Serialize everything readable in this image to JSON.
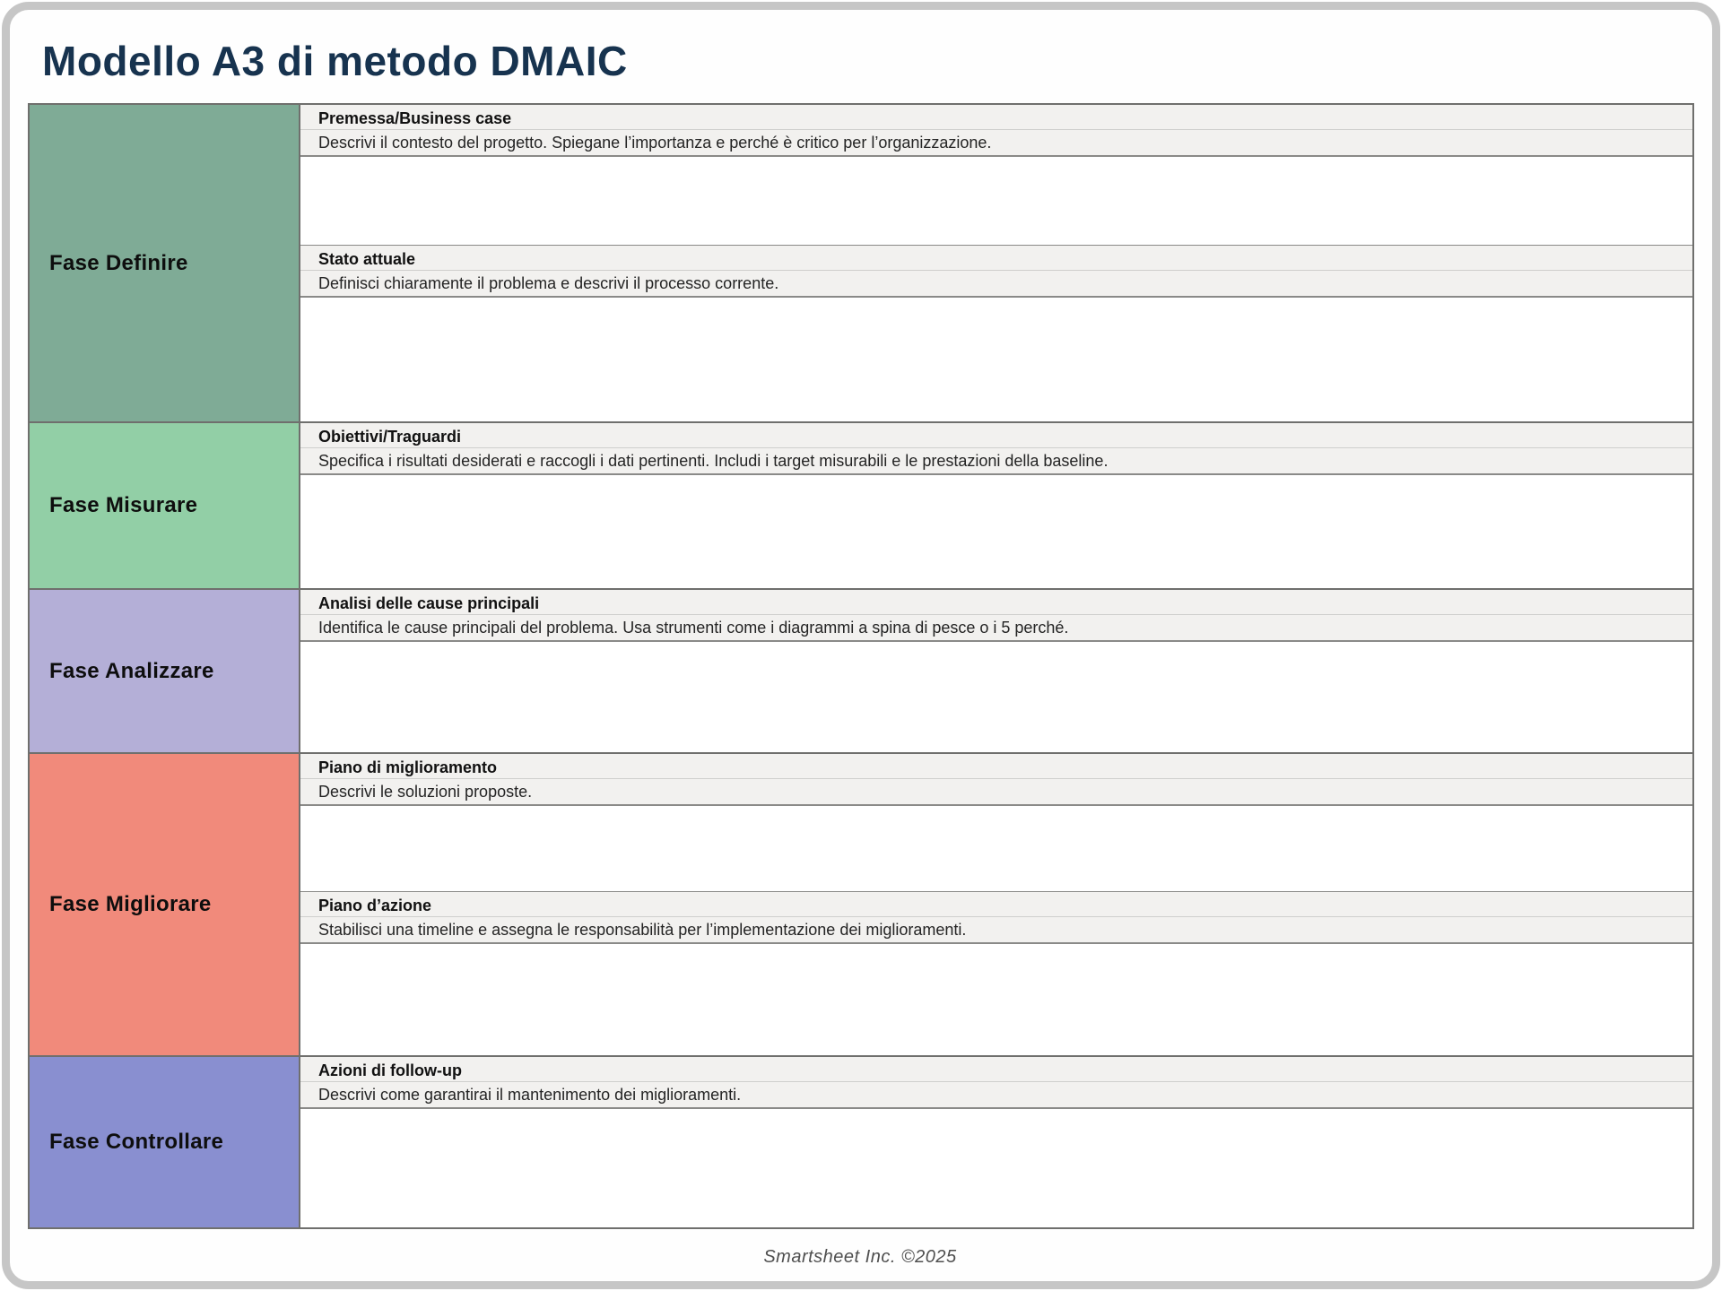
{
  "page": {
    "title": "Modello A3 di metodo DMAIC",
    "footer": "Smartsheet Inc. ©2025"
  },
  "colors": {
    "title_navy": "#17334f",
    "band_bg": "#f2f1ef",
    "frame_gray": "#c6c6c6",
    "border_gray": "#6f6f6d"
  },
  "phases": [
    {
      "label": "Fase Definire",
      "color": "#7fab96",
      "sections": [
        {
          "heading": "Premessa/Business case",
          "description": "Descrivi il contesto del progetto. Spiegane l’importanza e perché è critico per l’organizzazione."
        },
        {
          "heading": "Stato attuale",
          "description": "Definisci chiaramente il problema e descrivi il processo corrente."
        }
      ]
    },
    {
      "label": "Fase Misurare",
      "color": "#92cfa6",
      "sections": [
        {
          "heading": "Obiettivi/Traguardi",
          "description": "Specifica i risultati desiderati e raccogli i dati pertinenti. Includi i target misurabili e le prestazioni della baseline."
        }
      ]
    },
    {
      "label": "Fase Analizzare",
      "color": "#b4afd7",
      "sections": [
        {
          "heading": "Analisi delle cause principali",
          "description": "Identifica le cause principali del problema. Usa strumenti come i diagrammi a spina di pesce o i 5 perché."
        }
      ]
    },
    {
      "label": "Fase Migliorare",
      "color": "#f18a7b",
      "sections": [
        {
          "heading": "Piano di miglioramento",
          "description": "Descrivi le soluzioni proposte."
        },
        {
          "heading": "Piano d’azione",
          "description": "Stabilisci una timeline e assegna le responsabilità per l’implementazione dei miglioramenti."
        }
      ]
    },
    {
      "label": "Fase Controllare",
      "color": "#898fd0",
      "sections": [
        {
          "heading": "Azioni di follow-up",
          "description": "Descrivi come garantirai il mantenimento dei miglioramenti."
        }
      ]
    }
  ]
}
